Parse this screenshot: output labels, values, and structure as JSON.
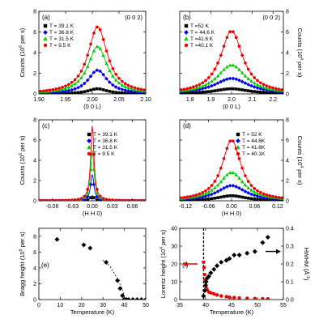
{
  "chart_data": [
    {
      "id": "a",
      "type": "line",
      "panel_label": "(a)",
      "annotation": "(0 0 2)",
      "xlabel": "(0 0 L)",
      "ylabel": "Counts (10^6 per s)",
      "xlim": [
        1.9,
        2.1
      ],
      "ylim": [
        0,
        8
      ],
      "xticks": [
        "1.90",
        "1.95",
        "2.00",
        "2.05",
        "2.10"
      ],
      "yticks": [
        "0",
        "2",
        "4",
        "6",
        "8"
      ],
      "yaxis_side": "left",
      "legend_position": "top-left",
      "series": [
        {
          "name": "T = 39.1 K",
          "color": "#000000",
          "marker": "square",
          "center": 2.01,
          "width": 0.022,
          "peak": 0.5
        },
        {
          "name": "T = 36.8 K",
          "color": "#0000ee",
          "marker": "diamond",
          "center": 2.01,
          "width": 0.022,
          "peak": 2.3
        },
        {
          "name": "T = 31.5 K",
          "color": "#00cc00",
          "marker": "triangle",
          "center": 2.01,
          "width": 0.022,
          "peak": 4.6
        },
        {
          "name": "T = 9.5 K",
          "color": "#ee0000",
          "marker": "circle",
          "center": 2.01,
          "width": 0.022,
          "peak": 6.5
        }
      ]
    },
    {
      "id": "b",
      "type": "line",
      "panel_label": "(b)",
      "annotation": "(0 0 2)",
      "xlabel": "(0 0 L)",
      "ylabel": "Counts (10^4 per s)",
      "xlim": [
        1.75,
        2.25
      ],
      "ylim": [
        0,
        8
      ],
      "xticks": [
        "1.8",
        "1.9",
        "2.0",
        "2.1",
        "2.2"
      ],
      "yticks": [
        "0",
        "2",
        "4",
        "6",
        "8"
      ],
      "yaxis_side": "right",
      "legend_position": "top-left",
      "series": [
        {
          "name": "T =52 K",
          "color": "#000000",
          "marker": "square",
          "center": 2.0,
          "width": 0.1,
          "peak": 0.5
        },
        {
          "name": "T = 44.6 K",
          "color": "#0000ee",
          "marker": "diamond",
          "center": 2.0,
          "width": 0.1,
          "peak": 1.5
        },
        {
          "name": "T =41.6 K",
          "color": "#00cc00",
          "marker": "triangle",
          "center": 2.0,
          "width": 0.085,
          "peak": 2.8
        },
        {
          "name": "T =40.1 K",
          "color": "#ee0000",
          "marker": "circle",
          "center": 2.0,
          "width": 0.065,
          "peak": 6.1
        }
      ]
    },
    {
      "id": "c",
      "type": "line",
      "panel_label": "(c)",
      "annotation": "",
      "xlabel": "(H H 0)",
      "ylabel": "Counts (10^6 per s)",
      "xlim": [
        -0.08,
        0.08
      ],
      "ylim": [
        0,
        8
      ],
      "xticks": [
        "-0.06",
        "-0.03",
        "0.00",
        "0.03",
        "0.06"
      ],
      "yticks": [
        "0",
        "2",
        "4",
        "6",
        "8"
      ],
      "yaxis_side": "left",
      "legend_position": "top-right",
      "series": [
        {
          "name": "T = 39.1 K",
          "color": "#000000",
          "marker": "square",
          "center": 0.0,
          "width": 0.003,
          "peak": 0.5
        },
        {
          "name": "T = 36.8 K",
          "color": "#0000ee",
          "marker": "diamond",
          "center": 0.0,
          "width": 0.003,
          "peak": 2.6
        },
        {
          "name": "T = 31.5 K",
          "color": "#00cc00",
          "marker": "triangle",
          "center": 0.0,
          "width": 0.003,
          "peak": 5.0
        },
        {
          "name": "T = 9.5 K",
          "color": "#ee0000",
          "marker": "circle",
          "center": 0.0,
          "width": 0.003,
          "peak": 7.4
        }
      ]
    },
    {
      "id": "d",
      "type": "line",
      "panel_label": "(d)",
      "annotation": "",
      "xlabel": "(H H 0)",
      "ylabel": "Counts (10^4 per s)",
      "xlim": [
        -0.135,
        0.135
      ],
      "ylim": [
        0,
        8
      ],
      "xticks": [
        "-0.12",
        "-0.06",
        "0.00",
        "0.06",
        "0.12"
      ],
      "yticks": [
        "0",
        "2",
        "4",
        "6",
        "8"
      ],
      "yaxis_side": "right",
      "legend_position": "top-right",
      "series": [
        {
          "name": "T = 52 K",
          "color": "#000000",
          "marker": "square",
          "center": 0.0,
          "width": 0.045,
          "peak": 0.5
        },
        {
          "name": "T = 44.6K",
          "color": "#0000ee",
          "marker": "diamond",
          "center": 0.0,
          "width": 0.045,
          "peak": 1.5
        },
        {
          "name": "T = 41.6K",
          "color": "#00cc00",
          "marker": "triangle",
          "center": 0.0,
          "width": 0.04,
          "peak": 2.8
        },
        {
          "name": "T = 40.1K",
          "color": "#ee0000",
          "marker": "circle",
          "center": 0.0,
          "width": 0.03,
          "peak": 6.0
        }
      ]
    },
    {
      "id": "e",
      "type": "scatter",
      "panel_label": "(e)",
      "xlabel": "Temperature (K)",
      "ylabel": "Bragg height (10^6 per s)",
      "xlim": [
        0,
        50
      ],
      "ylim": [
        0,
        9
      ],
      "xticks": [
        "0",
        "10",
        "20",
        "30",
        "40",
        "50"
      ],
      "yticks": [
        "0",
        "2",
        "4",
        "6",
        "8"
      ],
      "series": [
        {
          "name": "",
          "color": "#000000",
          "marker": "diamond",
          "x": [
            8.5,
            21,
            24,
            31.5,
            36.8,
            38,
            39.1,
            40,
            41,
            42,
            44,
            46,
            48,
            50
          ],
          "y": [
            7.6,
            6.9,
            6.5,
            4.7,
            2.4,
            1.4,
            0.5,
            0.05,
            0.0,
            0.0,
            0.0,
            0.0,
            0.0,
            0.0
          ]
        }
      ],
      "guide_line": {
        "x": [
          30,
          33,
          36,
          38,
          39.5,
          40.2,
          41,
          42,
          44,
          46,
          48,
          50
        ],
        "y": [
          5.0,
          4.3,
          3.0,
          1.9,
          0.9,
          0.0,
          0.0,
          0.0,
          0.0,
          0.0,
          0.0,
          0.0
        ],
        "style": "dashed",
        "color": "#000000"
      }
    },
    {
      "id": "f",
      "type": "scatter",
      "panel_label": "(f)",
      "xlabel": "Temperature (K)",
      "ylabel": "Lorentz height (10^4 per s)",
      "y2label": "HWHM (Å^-1)",
      "xlim": [
        35,
        55
      ],
      "ylim": [
        0,
        40
      ],
      "y2lim": [
        0,
        0.4
      ],
      "xticks": [
        "35",
        "40",
        "45",
        "50",
        "55"
      ],
      "yticks": [
        "0",
        "10",
        "20",
        "30",
        "40"
      ],
      "y2ticks": [
        "0.0",
        "0.1",
        "0.2",
        "0.3",
        "0.4"
      ],
      "vline_x": 39.6,
      "series": [
        {
          "name": "Lorentz height",
          "axis": "left",
          "color": "#ee0000",
          "marker": "circle",
          "x": [
            39.6,
            39.7,
            39.8,
            39.9,
            40.0,
            40.1,
            40.3,
            40.6,
            41,
            41.6,
            42.2,
            43,
            44,
            44.6,
            45.5,
            46.5,
            48,
            49.5,
            51,
            52
          ],
          "y": [
            21,
            18,
            14,
            11,
            8,
            6.5,
            5.5,
            4.3,
            3.8,
            3.2,
            2.6,
            2.0,
            1.6,
            1.3,
            1.1,
            0.9,
            0.7,
            0.6,
            0.5,
            0.4
          ]
        },
        {
          "name": "HWHM",
          "axis": "right",
          "color": "#000000",
          "marker": "diamond",
          "x": [
            39.6,
            39.8,
            40.0,
            40.1,
            40.3,
            40.6,
            41,
            41.6,
            42.2,
            43,
            44,
            44.6,
            45.5,
            46.5,
            48,
            49.5,
            51,
            52
          ],
          "y": [
            0.02,
            0.05,
            0.08,
            0.1,
            0.12,
            0.13,
            0.15,
            0.17,
            0.19,
            0.21,
            0.22,
            0.23,
            0.25,
            0.25,
            0.26,
            0.27,
            0.32,
            0.35
          ]
        }
      ]
    }
  ]
}
